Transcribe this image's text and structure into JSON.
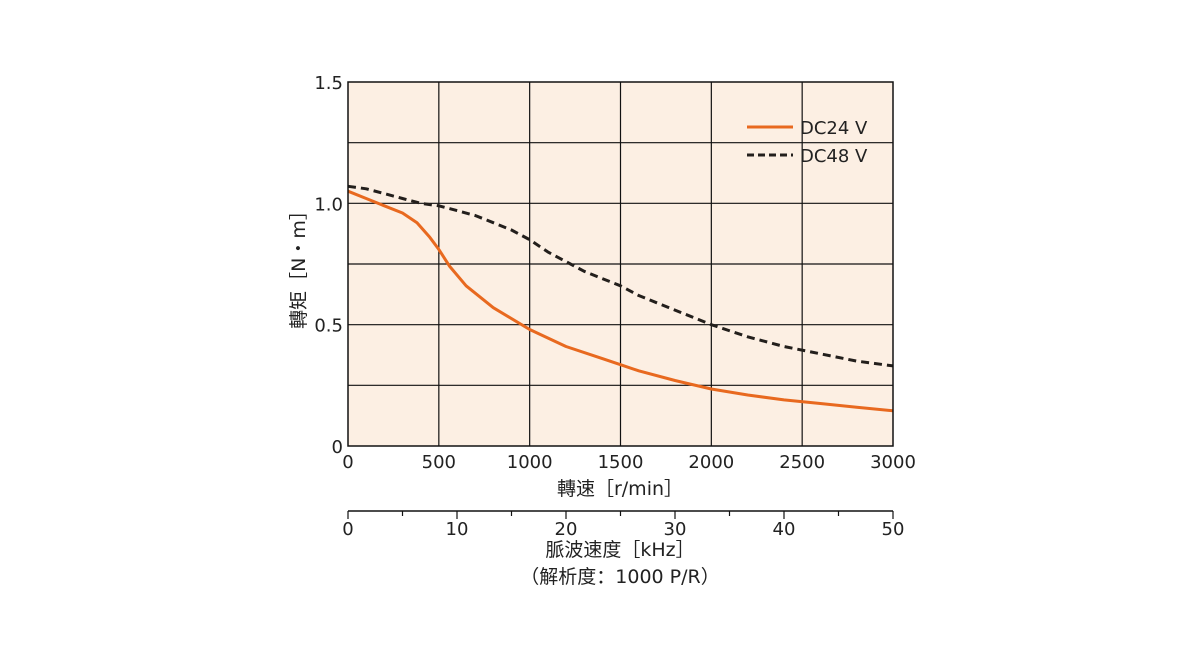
{
  "chart_data": {
    "type": "line",
    "x_label": "轉速［r/min］",
    "y_label": "轉矩［N・m］",
    "x_range": [
      0,
      3000
    ],
    "x_ticks": [
      "0",
      "500",
      "1000",
      "1500",
      "2000",
      "2500",
      "3000"
    ],
    "y_range": [
      0,
      1.5
    ],
    "y_ticks": [
      "0",
      "0.5",
      "1.0",
      "1.5"
    ],
    "secondary_x_label": "脈波速度［kHz］",
    "secondary_x_note": "（解析度：1000 P/R）",
    "secondary_x_range": [
      0,
      50
    ],
    "secondary_x_ticks": [
      "0",
      "10",
      "20",
      "30",
      "40",
      "50"
    ],
    "grid": true,
    "legend_position": "top-right",
    "colors": {
      "plot_background": "#fcefe3",
      "dc24": "#e8691f",
      "dc48": "#231f1c"
    },
    "series": [
      {
        "name": "DC24 V",
        "style": "solid",
        "x": [
          0,
          100,
          200,
          300,
          380,
          450,
          500,
          560,
          650,
          800,
          1000,
          1200,
          1400,
          1500,
          1600,
          1800,
          2000,
          2200,
          2400,
          2600,
          2800,
          3000
        ],
        "y": [
          1.05,
          1.02,
          0.99,
          0.96,
          0.92,
          0.86,
          0.81,
          0.74,
          0.66,
          0.57,
          0.48,
          0.41,
          0.36,
          0.335,
          0.31,
          0.27,
          0.235,
          0.21,
          0.19,
          0.175,
          0.16,
          0.145
        ]
      },
      {
        "name": "DC48 V",
        "style": "dashed",
        "x": [
          0,
          100,
          200,
          300,
          400,
          500,
          600,
          700,
          800,
          900,
          1000,
          1100,
          1200,
          1300,
          1400,
          1500,
          1600,
          1700,
          1800,
          1900,
          2000,
          2200,
          2400,
          2600,
          2800,
          3000
        ],
        "y": [
          1.07,
          1.06,
          1.04,
          1.02,
          1.0,
          0.99,
          0.97,
          0.95,
          0.92,
          0.89,
          0.85,
          0.8,
          0.76,
          0.72,
          0.69,
          0.66,
          0.62,
          0.59,
          0.56,
          0.53,
          0.5,
          0.45,
          0.41,
          0.38,
          0.35,
          0.33
        ]
      }
    ]
  }
}
